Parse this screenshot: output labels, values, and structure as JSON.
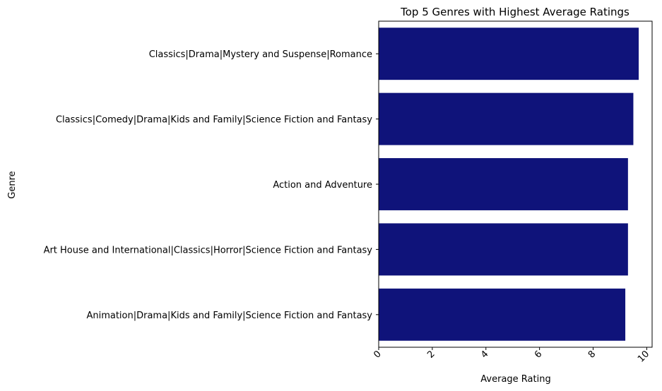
{
  "chart_data": {
    "type": "bar",
    "orientation": "horizontal",
    "title": "Top 5 Genres with Highest Average Ratings",
    "xlabel": "Average Rating",
    "ylabel": "Genre",
    "categories": [
      "Classics|Drama|Mystery and Suspense|Romance",
      "Classics|Comedy|Drama|Kids and Family|Science Fiction and Fantasy",
      "Action and Adventure",
      "Art House and International|Classics|Horror|Science Fiction and Fantasy",
      "Animation|Drama|Kids and Family|Science Fiction and Fantasy"
    ],
    "values": [
      9.7,
      9.5,
      9.3,
      9.3,
      9.2
    ],
    "xlim": [
      0,
      10.2
    ],
    "xticks": [
      "0",
      "2",
      "4",
      "6",
      "8",
      "10"
    ],
    "xtick_rotation": "45 degrees",
    "bar_color": "#0f137a",
    "grid": false,
    "legend": "none"
  }
}
